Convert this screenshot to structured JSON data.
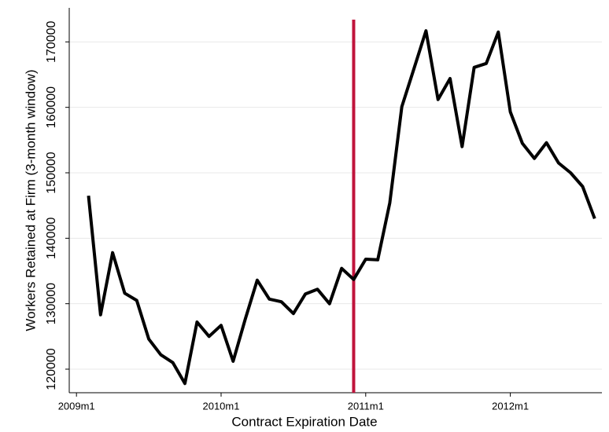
{
  "chart_data": {
    "type": "line",
    "x_label": "Contract Expiration Date",
    "y_label": "Workers Retained at Firm (3-month window)",
    "x": [
      "2009m2",
      "2009m3",
      "2009m4",
      "2009m5",
      "2009m6",
      "2009m7",
      "2009m8",
      "2009m9",
      "2009m10",
      "2009m11",
      "2009m12",
      "2010m1",
      "2010m2",
      "2010m3",
      "2010m4",
      "2010m5",
      "2010m6",
      "2010m7",
      "2010m8",
      "2010m9",
      "2010m10",
      "2010m11",
      "2010m12",
      "2011m1",
      "2011m2",
      "2011m3",
      "2011m4",
      "2011m5",
      "2011m6",
      "2011m7",
      "2011m8",
      "2011m9",
      "2011m10",
      "2011m11",
      "2011m12",
      "2012m1",
      "2012m2",
      "2012m3",
      "2012m4",
      "2012m5",
      "2012m6",
      "2012m7",
      "2012m8"
    ],
    "series": [
      {
        "color": "#000000",
        "values": [
          146500,
          128300,
          137800,
          131600,
          130500,
          124600,
          122200,
          121000,
          117800,
          127200,
          125000,
          126700,
          121200,
          127600,
          133600,
          130700,
          130300,
          128500,
          131500,
          132200,
          130000,
          135400,
          133700,
          136800,
          136700,
          145400,
          160100,
          165900,
          171700,
          161200,
          164400,
          154000,
          166100,
          166700,
          171500,
          159300,
          154500,
          152200,
          154600,
          151500,
          150000,
          147900,
          143000
        ]
      }
    ],
    "vline": {
      "x": "2010m12",
      "color": "#c0143c"
    },
    "xticks": [
      "2009m1",
      "2010m1",
      "2011m1",
      "2012m1"
    ],
    "ylim": [
      116400,
      175200
    ],
    "yticks": [
      120000,
      130000,
      140000,
      150000,
      160000,
      170000
    ],
    "grid": true
  }
}
